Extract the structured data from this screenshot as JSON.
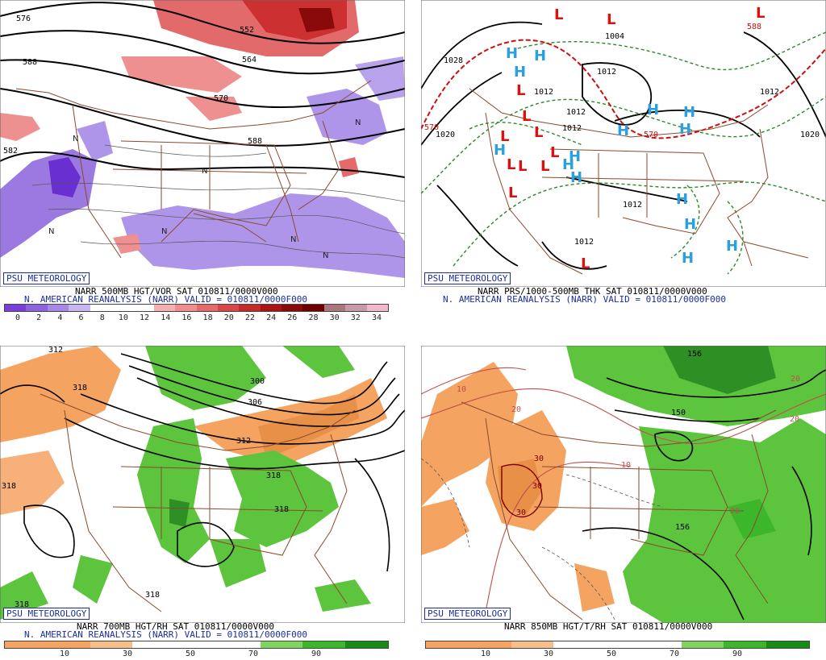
{
  "panels": [
    {
      "id": "vort500",
      "credit": "PSU METEOROLOGY",
      "caption_line1": "NARR 500MB HGT/VOR SAT 010811/0000V000",
      "caption_line2": "N. AMERICAN REANALYSIS (NARR) VALID = 010811/0000F000",
      "colorbar_labels": [
        "0",
        "2",
        "4",
        "6",
        "8",
        "10",
        "12",
        "14",
        "16",
        "18",
        "20",
        "22",
        "24",
        "26",
        "28",
        "30",
        "32",
        "34"
      ],
      "colorbar_colors": [
        "#7a3fd6",
        "#8f63dd",
        "#a888e6",
        "#c8b6ef",
        "#ffffff",
        "#ffffff",
        "#ffffff",
        "#f4b1b1",
        "#ee8e8e",
        "#e56a6a",
        "#d94848",
        "#c42a2a",
        "#a81414",
        "#8a0a0a",
        "#6e0000",
        "#a8787c",
        "#c89aa8",
        "#f0b8c8"
      ],
      "contour_labels": [
        "576",
        "552",
        "564",
        "570",
        "588",
        "588",
        "582",
        "588"
      ]
    },
    {
      "id": "mslp",
      "credit": "PSU METEOROLOGY",
      "caption_line1": "NARR PRS/1000-500MB THK SAT 010811/0000V000",
      "caption_line2": "N. AMERICAN REANALYSIS (NARR) VALID = 010811/0000F000",
      "contour_labels": [
        "1028",
        "1020",
        "1004",
        "1012",
        "1012",
        "1012",
        "1012",
        "1020",
        "1012",
        "1012",
        "1012",
        "570",
        "570",
        "588"
      ]
    },
    {
      "id": "rh700",
      "credit": "PSU METEOROLOGY",
      "caption_line1": "NARR 700MB HGT/RH SAT 010811/0000V000",
      "caption_line2": "N. AMERICAN REANALYSIS (NARR) VALID = 010811/0000F000",
      "colorbar_labels": [
        "10",
        "30",
        "50",
        "70",
        "90"
      ],
      "colorbar_colors": [
        "#f4a460",
        "#f4a460",
        "#f7c08b",
        "#ffffff",
        "#ffffff",
        "#ffffff",
        "#7fd35f",
        "#3cb62a",
        "#178c14"
      ],
      "contour_labels": [
        "312",
        "318",
        "300",
        "306",
        "318",
        "312",
        "318",
        "318",
        "318",
        "318",
        "318"
      ]
    },
    {
      "id": "temp850",
      "credit": "PSU METEOROLOGY",
      "caption_line1": "NARR 850MB HGT/T/RH SAT 010811/0000V000",
      "colorbar_labels": [
        "10",
        "30",
        "50",
        "70",
        "90"
      ],
      "colorbar_colors": [
        "#f4a460",
        "#f4a460",
        "#f7c08b",
        "#ffffff",
        "#ffffff",
        "#ffffff",
        "#7fd35f",
        "#3cb62a",
        "#178c14"
      ],
      "contour_labels": [
        "10",
        "20",
        "20",
        "10",
        "20",
        "30",
        "30",
        "30",
        "150",
        "156",
        "156",
        "20",
        "20"
      ],
      "colorbar_label_10": "10"
    }
  ],
  "symbols": {
    "highs": [
      "H",
      "H",
      "H",
      "H",
      "H",
      "H",
      "H",
      "H",
      "H",
      "H",
      "H",
      "H",
      "H",
      "H",
      "H"
    ],
    "lows": [
      "L",
      "L",
      "L",
      "L",
      "L",
      "L",
      "L",
      "L",
      "L",
      "L",
      "L",
      "L",
      "L"
    ]
  }
}
